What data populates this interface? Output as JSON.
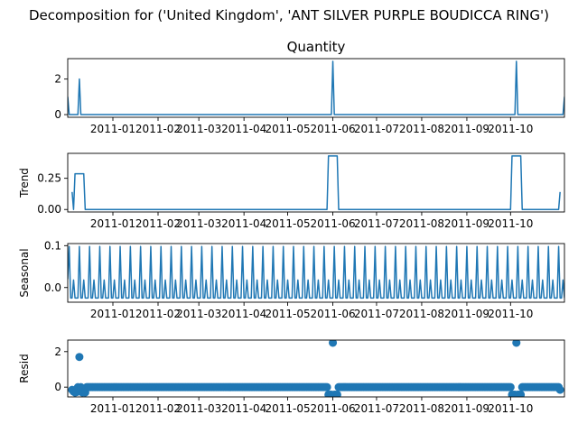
{
  "chart_data": {
    "type": "line",
    "title": "Decomposition for ('United Kingdom', 'ANT SILVER PURPLE BOUDICCA RING')",
    "x_tick_labels": [
      "2011-01",
      "2011-02",
      "2011-03",
      "2011-04",
      "2011-05",
      "2011-06",
      "2011-07",
      "2011-08",
      "2011-09",
      "2011-10"
    ],
    "x_tick_dates": [
      "2011-01-01",
      "2011-02-01",
      "2011-03-01",
      "2011-04-01",
      "2011-05-01",
      "2011-06-01",
      "2011-07-01",
      "2011-08-01",
      "2011-09-01",
      "2011-10-01"
    ],
    "x_range": [
      "2010-12-01",
      "2011-11-07"
    ],
    "color": "#1f77b4",
    "panels": [
      {
        "title": "Quantity",
        "ylabel": "",
        "type": "line",
        "ylim": [
          -0.15,
          3.15
        ],
        "yticks": [
          0,
          2
        ],
        "points": [
          [
            "2010-12-01",
            1
          ],
          [
            "2010-12-02",
            0
          ],
          [
            "2010-12-08",
            0
          ],
          [
            "2010-12-09",
            2
          ],
          [
            "2010-12-10",
            0
          ],
          [
            "2011-05-31",
            0
          ],
          [
            "2011-06-01",
            3
          ],
          [
            "2011-06-02",
            0
          ],
          [
            "2011-10-04",
            0
          ],
          [
            "2011-10-05",
            3
          ],
          [
            "2011-10-06",
            0
          ],
          [
            "2011-11-06",
            0
          ],
          [
            "2011-11-07",
            1
          ]
        ]
      },
      {
        "title": "",
        "ylabel": "Trend",
        "type": "line",
        "ylim": [
          -0.02,
          0.45
        ],
        "yticks": [
          0.0,
          0.25
        ],
        "tick_labels": [
          "0.00",
          "0.25"
        ],
        "points": [
          [
            "2010-12-04",
            0.14
          ],
          [
            "2010-12-05",
            0.0
          ],
          [
            "2010-12-06",
            0.286
          ],
          [
            "2010-12-12",
            0.286
          ],
          [
            "2010-12-13",
            0.0
          ],
          [
            "2011-05-28",
            0.0
          ],
          [
            "2011-05-29",
            0.429
          ],
          [
            "2011-06-04",
            0.429
          ],
          [
            "2011-06-05",
            0.0
          ],
          [
            "2011-10-01",
            0.0
          ],
          [
            "2011-10-02",
            0.429
          ],
          [
            "2011-10-08",
            0.429
          ],
          [
            "2011-10-09",
            0.0
          ],
          [
            "2011-11-03",
            0.0
          ],
          [
            "2011-11-04",
            0.14
          ]
        ]
      },
      {
        "title": "",
        "ylabel": "Seasonal",
        "type": "line",
        "ylim": [
          -0.035,
          0.105
        ],
        "yticks": [
          0.0,
          0.1
        ],
        "tick_labels": [
          "0.0",
          "0.1"
        ],
        "period_days": 7,
        "start": "2010-12-01",
        "end": "2011-11-07",
        "pattern": [
          -0.025,
          0.098,
          -0.025,
          -0.025,
          0.018,
          -0.025,
          -0.025
        ],
        "first_value": 0.02
      },
      {
        "title": "",
        "ylabel": "Resid",
        "type": "scatter",
        "ylim": [
          -0.55,
          2.65
        ],
        "yticks": [
          0,
          2
        ],
        "start": "2010-12-04",
        "end": "2011-11-04",
        "base_value": 0.0,
        "minor_dips": [
          [
            "2010-12-04",
            -0.15
          ],
          [
            "2010-12-05",
            -0.25
          ],
          [
            "2010-12-06",
            -0.3
          ],
          [
            "2010-12-07",
            -0.28
          ],
          [
            "2010-12-11",
            -0.3
          ],
          [
            "2010-12-12",
            -0.28
          ],
          [
            "2010-12-13",
            -0.3
          ],
          [
            "2011-05-29",
            -0.42
          ],
          [
            "2011-05-30",
            -0.42
          ],
          [
            "2011-05-31",
            -0.42
          ],
          [
            "2011-06-02",
            -0.42
          ],
          [
            "2011-06-03",
            -0.42
          ],
          [
            "2011-06-04",
            -0.42
          ],
          [
            "2011-10-02",
            -0.42
          ],
          [
            "2011-10-03",
            -0.42
          ],
          [
            "2011-10-04",
            -0.42
          ],
          [
            "2011-10-06",
            -0.42
          ],
          [
            "2011-10-07",
            -0.42
          ],
          [
            "2011-10-08",
            -0.42
          ],
          [
            "2011-11-04",
            -0.15
          ]
        ],
        "outliers": [
          [
            "2010-12-09",
            1.7
          ],
          [
            "2011-06-01",
            2.5
          ],
          [
            "2011-10-05",
            2.5
          ]
        ]
      }
    ]
  }
}
